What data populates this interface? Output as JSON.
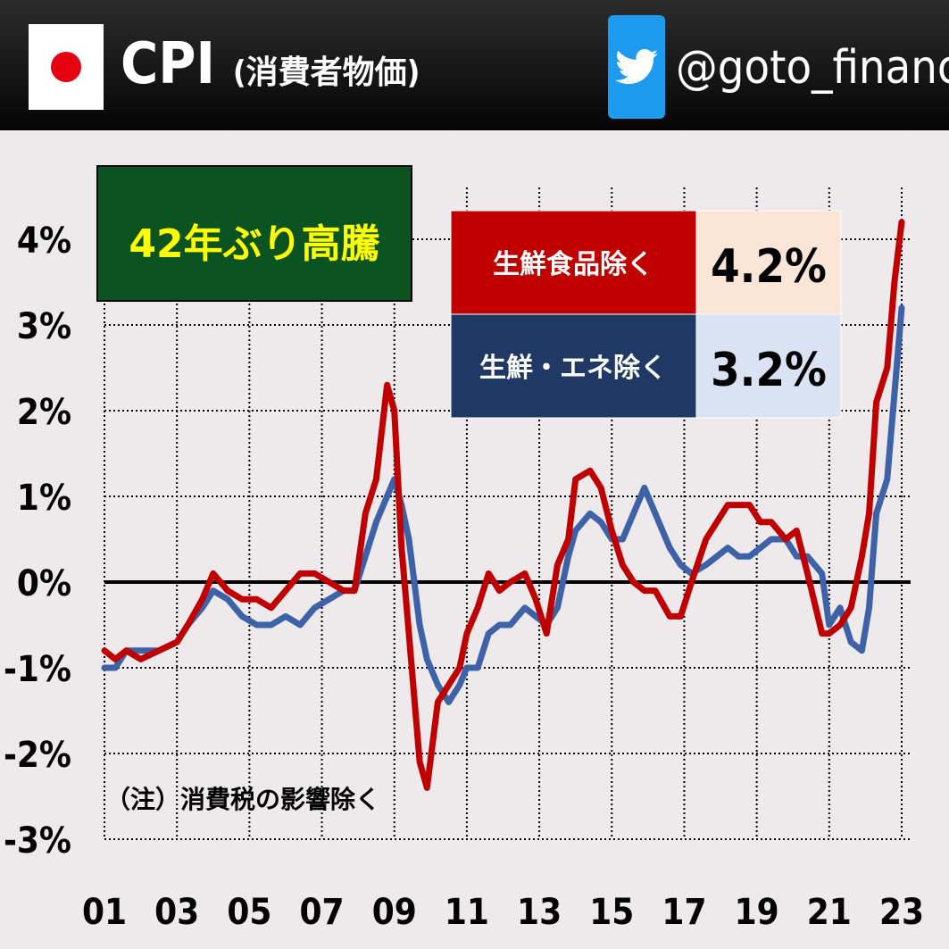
{
  "header": {
    "title": "CPI",
    "subtitle": "(消費者物価)",
    "handle": "@goto_finance",
    "icons": [
      "japan-flag-icon",
      "twitter-bird-icon"
    ]
  },
  "chart_data": {
    "type": "line",
    "headline": "42年ぶり高騰",
    "note": "（注）消費税の影響除く",
    "x_tick_labels": [
      "01",
      "03",
      "05",
      "07",
      "09",
      "11",
      "13",
      "15",
      "17",
      "19",
      "21",
      "23"
    ],
    "y_tick_labels": [
      "-3%",
      "-2%",
      "-1%",
      "0%",
      "1%",
      "2%",
      "3%",
      "4%"
    ],
    "ylim": [
      -3,
      4.5
    ],
    "xlim": [
      2001.0,
      2023.0
    ],
    "grid": true,
    "legend_position": "top-right",
    "colors": {
      "core": "#c00000",
      "core_core": "#3d62a8",
      "core_cell": "#c00000",
      "core_value_cell": "#fbe5d6",
      "core_core_cell": "#1f3864",
      "core_core_value_cell": "#dae3f3",
      "headline_box": "#0b5320",
      "headline_text": "#ffff00"
    },
    "series": [
      {
        "name": "生鮮食品除く",
        "latest_label": "4.2%",
        "points": [
          [
            2001.0,
            -0.8
          ],
          [
            2001.3,
            -0.9
          ],
          [
            2001.6,
            -0.8
          ],
          [
            2002.0,
            -0.9
          ],
          [
            2002.5,
            -0.8
          ],
          [
            2003.0,
            -0.7
          ],
          [
            2003.3,
            -0.5
          ],
          [
            2003.7,
            -0.2
          ],
          [
            2004.0,
            0.1
          ],
          [
            2004.4,
            -0.1
          ],
          [
            2004.8,
            -0.2
          ],
          [
            2005.2,
            -0.2
          ],
          [
            2005.6,
            -0.3
          ],
          [
            2006.0,
            -0.1
          ],
          [
            2006.4,
            0.1
          ],
          [
            2006.8,
            0.1
          ],
          [
            2007.2,
            0.0
          ],
          [
            2007.6,
            -0.1
          ],
          [
            2007.9,
            -0.1
          ],
          [
            2008.2,
            0.8
          ],
          [
            2008.5,
            1.2
          ],
          [
            2008.8,
            2.3
          ],
          [
            2009.0,
            2.0
          ],
          [
            2009.2,
            0.4
          ],
          [
            2009.4,
            -0.6
          ],
          [
            2009.7,
            -2.1
          ],
          [
            2009.9,
            -2.4
          ],
          [
            2010.2,
            -1.4
          ],
          [
            2010.5,
            -1.2
          ],
          [
            2010.8,
            -1.0
          ],
          [
            2011.0,
            -0.6
          ],
          [
            2011.3,
            -0.3
          ],
          [
            2011.6,
            0.1
          ],
          [
            2011.9,
            -0.1
          ],
          [
            2012.2,
            0.0
          ],
          [
            2012.6,
            0.1
          ],
          [
            2012.9,
            -0.2
          ],
          [
            2013.2,
            -0.6
          ],
          [
            2013.5,
            0.2
          ],
          [
            2013.8,
            0.5
          ],
          [
            2014.0,
            1.2
          ],
          [
            2014.4,
            1.3
          ],
          [
            2014.7,
            1.1
          ],
          [
            2015.0,
            0.6
          ],
          [
            2015.3,
            0.2
          ],
          [
            2015.6,
            0.0
          ],
          [
            2015.9,
            -0.1
          ],
          [
            2016.2,
            -0.1
          ],
          [
            2016.6,
            -0.4
          ],
          [
            2016.9,
            -0.4
          ],
          [
            2017.2,
            0.0
          ],
          [
            2017.6,
            0.5
          ],
          [
            2017.9,
            0.7
          ],
          [
            2018.2,
            0.9
          ],
          [
            2018.5,
            0.9
          ],
          [
            2018.8,
            0.9
          ],
          [
            2019.1,
            0.7
          ],
          [
            2019.4,
            0.7
          ],
          [
            2019.8,
            0.5
          ],
          [
            2020.1,
            0.6
          ],
          [
            2020.4,
            0.1
          ],
          [
            2020.8,
            -0.6
          ],
          [
            2021.0,
            -0.6
          ],
          [
            2021.3,
            -0.5
          ],
          [
            2021.6,
            -0.3
          ],
          [
            2021.9,
            0.3
          ],
          [
            2022.1,
            0.8
          ],
          [
            2022.3,
            2.1
          ],
          [
            2022.6,
            2.5
          ],
          [
            2022.8,
            3.5
          ],
          [
            2023.0,
            4.2
          ]
        ]
      },
      {
        "name": "生鮮・エネ除く",
        "latest_label": "3.2%",
        "points": [
          [
            2001.0,
            -1.0
          ],
          [
            2001.3,
            -1.0
          ],
          [
            2001.6,
            -0.8
          ],
          [
            2002.0,
            -0.8
          ],
          [
            2002.5,
            -0.8
          ],
          [
            2003.0,
            -0.7
          ],
          [
            2003.3,
            -0.5
          ],
          [
            2003.7,
            -0.3
          ],
          [
            2004.0,
            -0.1
          ],
          [
            2004.4,
            -0.2
          ],
          [
            2004.8,
            -0.4
          ],
          [
            2005.2,
            -0.5
          ],
          [
            2005.6,
            -0.5
          ],
          [
            2006.0,
            -0.4
          ],
          [
            2006.4,
            -0.5
          ],
          [
            2006.8,
            -0.3
          ],
          [
            2007.2,
            -0.2
          ],
          [
            2007.6,
            -0.1
          ],
          [
            2007.9,
            -0.1
          ],
          [
            2008.2,
            0.3
          ],
          [
            2008.5,
            0.7
          ],
          [
            2008.8,
            1.0
          ],
          [
            2009.0,
            1.2
          ],
          [
            2009.2,
            0.9
          ],
          [
            2009.4,
            0.5
          ],
          [
            2009.7,
            -0.5
          ],
          [
            2009.9,
            -0.9
          ],
          [
            2010.2,
            -1.2
          ],
          [
            2010.5,
            -1.4
          ],
          [
            2010.8,
            -1.2
          ],
          [
            2011.0,
            -1.0
          ],
          [
            2011.3,
            -1.0
          ],
          [
            2011.6,
            -0.6
          ],
          [
            2011.9,
            -0.5
          ],
          [
            2012.2,
            -0.5
          ],
          [
            2012.6,
            -0.3
          ],
          [
            2012.9,
            -0.4
          ],
          [
            2013.2,
            -0.5
          ],
          [
            2013.5,
            -0.3
          ],
          [
            2013.8,
            0.3
          ],
          [
            2014.0,
            0.6
          ],
          [
            2014.4,
            0.8
          ],
          [
            2014.7,
            0.7
          ],
          [
            2015.0,
            0.5
          ],
          [
            2015.3,
            0.5
          ],
          [
            2015.6,
            0.8
          ],
          [
            2015.9,
            1.1
          ],
          [
            2016.2,
            0.8
          ],
          [
            2016.6,
            0.4
          ],
          [
            2016.9,
            0.2
          ],
          [
            2017.2,
            0.1
          ],
          [
            2017.6,
            0.2
          ],
          [
            2017.9,
            0.3
          ],
          [
            2018.2,
            0.4
          ],
          [
            2018.5,
            0.3
          ],
          [
            2018.8,
            0.3
          ],
          [
            2019.1,
            0.4
          ],
          [
            2019.4,
            0.5
          ],
          [
            2019.8,
            0.5
          ],
          [
            2020.1,
            0.3
          ],
          [
            2020.4,
            0.3
          ],
          [
            2020.8,
            0.1
          ],
          [
            2021.0,
            -0.5
          ],
          [
            2021.3,
            -0.3
          ],
          [
            2021.6,
            -0.7
          ],
          [
            2021.9,
            -0.8
          ],
          [
            2022.1,
            -0.3
          ],
          [
            2022.3,
            0.8
          ],
          [
            2022.6,
            1.2
          ],
          [
            2022.8,
            2.2
          ],
          [
            2023.0,
            3.2
          ]
        ]
      }
    ]
  }
}
